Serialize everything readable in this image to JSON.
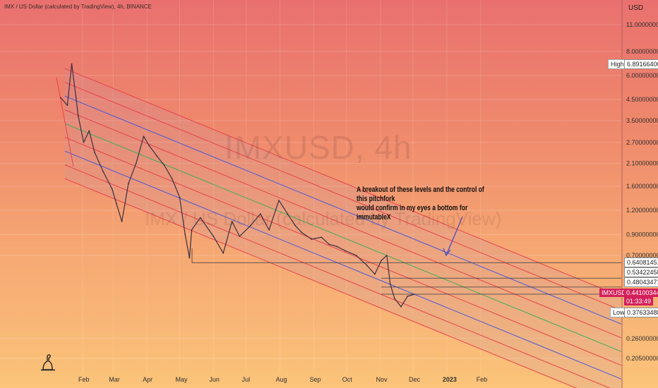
{
  "header": {
    "title": "IMX / US Dollar (calculated by TradingView), 4h, BINANCE"
  },
  "watermark": {
    "symbol": "IMXUSD, 4h",
    "name": "IMX / US Dollar (calculated by TradingView)"
  },
  "annotation": {
    "line1": "A breakout of these levels and the control of this pitchfork",
    "line2": "would confirm in my eyes a bottom for immutableX"
  },
  "price_axis": {
    "currency": "USD",
    "high_label": "High",
    "high_value": "6.89166400",
    "low_label": "Low",
    "low_value": "0.37633488",
    "symbol_tag": "IMXUSD",
    "current_price": "0.44100344",
    "countdown": "01:33:49",
    "levels": [
      "0.64081451",
      "0.53422458",
      "0.48043471"
    ]
  },
  "colors": {
    "channel_red": "#e8434a",
    "channel_blue": "#4a5ad8",
    "channel_green": "#3fae58",
    "price_line": "#3a2f3f",
    "accent_red": "#d3205a"
  },
  "chart_data": {
    "type": "line",
    "title": "IMX / US Dollar (calculated by TradingView), 4h, BINANCE",
    "y_scale": "log",
    "y_ticks": [
      "11.00000000",
      "8.00000000",
      "6.00000000",
      "4.50000000",
      "3.50000000",
      "2.70000000",
      "2.10000000",
      "1.60000000",
      "1.20000000",
      "0.90000000",
      "0.70000000",
      "0.26000000",
      "0.20500000"
    ],
    "x_ticks": [
      "Feb",
      "Mar",
      "Apr",
      "May",
      "Jun",
      "Jul",
      "Aug",
      "Sep",
      "Oct",
      "Nov",
      "Dec",
      "2023",
      "Feb"
    ],
    "grid": true,
    "series": [
      {
        "name": "IMXUSD",
        "x": [
          "Jan 12",
          "Jan 18",
          "Jan 22",
          "Jan 26",
          "Jan 28",
          "Feb 2",
          "Feb 7",
          "Feb 12",
          "Feb 20",
          "Feb 28",
          "Mar 4",
          "Mar 9",
          "Mar 15",
          "Mar 22",
          "Mar 29",
          "Apr 3",
          "Apr 10",
          "Apr 17",
          "Apr 24",
          "May 1",
          "May 6",
          "May 10",
          "May 12",
          "May 20",
          "Jun 1",
          "Jun 10",
          "Jun 18",
          "Jun 25",
          "Jul 5",
          "Jul 14",
          "Jul 22",
          "Jul 31",
          "Aug 8",
          "Aug 15",
          "Aug 21",
          "Aug 30",
          "Sep 8",
          "Sep 15",
          "Sep 22",
          "Sep 30",
          "Oct 10",
          "Oct 20",
          "Oct 27",
          "Nov 2",
          "Nov 7",
          "Nov 10",
          "Nov 14",
          "Nov 20",
          "Nov 26",
          "Dec 2"
        ],
        "y": [
          4.6,
          4.2,
          6.89,
          4.6,
          3.7,
          2.7,
          3.1,
          2.4,
          1.9,
          1.55,
          1.3,
          1.05,
          1.65,
          2.1,
          2.9,
          2.6,
          2.3,
          2.05,
          1.75,
          1.4,
          0.9,
          0.68,
          0.95,
          1.1,
          0.88,
          0.72,
          1.05,
          0.88,
          1.0,
          1.15,
          0.95,
          1.35,
          1.15,
          1.0,
          0.92,
          0.85,
          0.87,
          0.8,
          0.78,
          0.74,
          0.7,
          0.62,
          0.56,
          0.66,
          0.7,
          0.5,
          0.42,
          0.38,
          0.43,
          0.44
        ]
      }
    ],
    "pitchfork_lines": 9,
    "horizontal_levels": [
      0.64081451,
      0.53422458,
      0.48043471,
      0.44100344
    ]
  }
}
